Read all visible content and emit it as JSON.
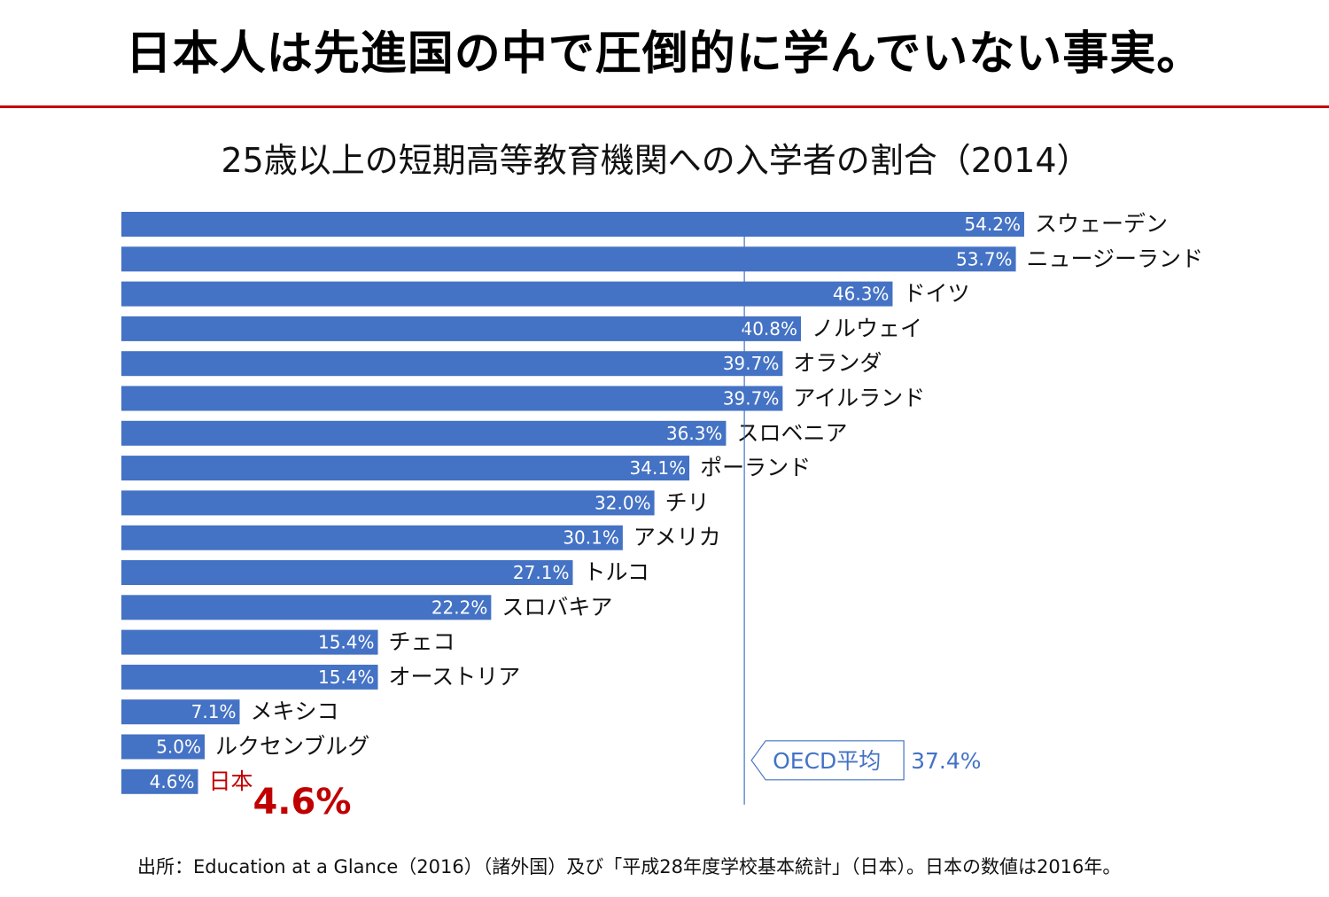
{
  "headline": "日本人は先進国の中で圧倒的に学んでいない事実。",
  "footer": "出所：Education at a Glance（2016）（諸外国）及び「平成28年度学校基本統計」（日本）。日本の数値は2016年。",
  "colors": {
    "bar": "#4472C4",
    "highlight": "#C00000",
    "average": "#4472C4",
    "headline_rule": "#C00000"
  },
  "chart_data": {
    "type": "bar",
    "orientation": "horizontal",
    "title": "25歳以上の短期高等教育機関への入学者の割合（2014）",
    "xlim": [
      0,
      70
    ],
    "grid": false,
    "value_suffix": "%",
    "categories": [
      "スウェーデン",
      "ニュージーランド",
      "ドイツ",
      "ノルウェイ",
      "オランダ",
      "アイルランド",
      "スロベニア",
      "ポーランド",
      "チリ",
      "アメリカ",
      "トルコ",
      "スロバキア",
      "チェコ",
      "オーストリア",
      "メキシコ",
      "ルクセンブルグ",
      "日本"
    ],
    "value_labels": [
      "54.2%",
      "53.7%",
      "46.3%",
      "40.8%",
      "39.7%",
      "39.7%",
      "36.3%",
      "34.1%",
      "32.0%",
      "30.1%",
      "27.1%",
      "22.2%",
      "15.4%",
      "15.4%",
      "7.1%",
      "5.0%",
      "4.6%"
    ],
    "values": [
      54.2,
      53.7,
      46.3,
      40.8,
      39.7,
      39.7,
      36.3,
      34.1,
      32.0,
      30.1,
      27.1,
      22.2,
      15.4,
      15.4,
      7.1,
      5.0,
      4.6
    ],
    "highlight": {
      "category": "日本",
      "label": "4.6%"
    },
    "reference_line": {
      "name": "OECD平均",
      "value": 37.4,
      "label": "37.4%"
    }
  }
}
